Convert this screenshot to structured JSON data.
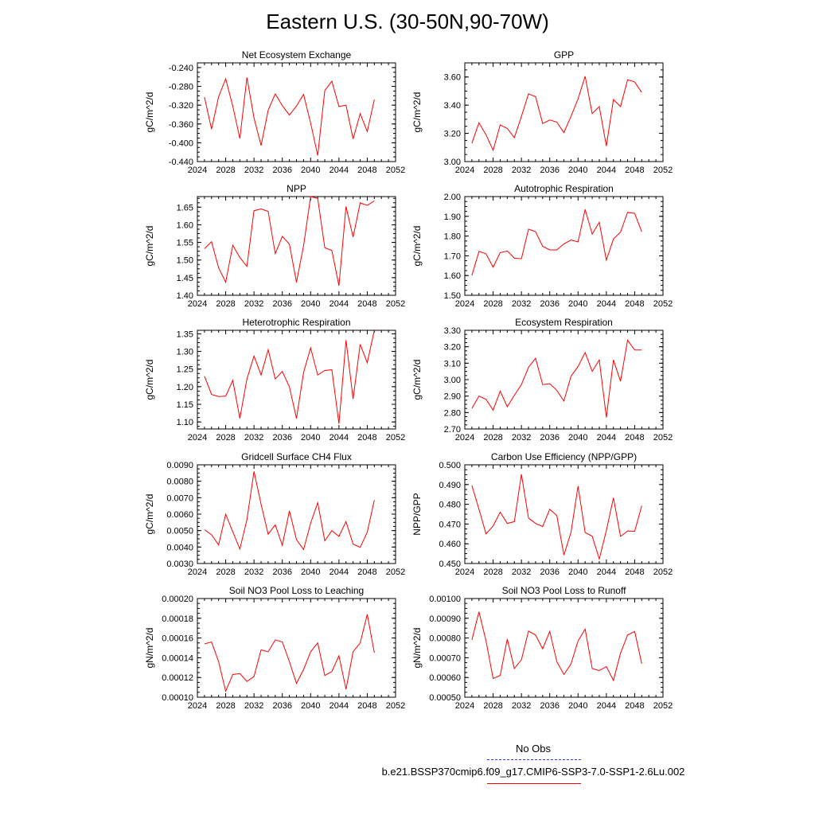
{
  "page": {
    "title": "Eastern U.S. (30-50N,90-70W)",
    "legend": {
      "obs_label": "No Obs",
      "model_label": "b.e21.BSSP370cmip6.f09_g17.CMIP6-SSP3-7.0-SSP1-2.6Lu.002",
      "obs_color": "#3333ff",
      "model_color": "#ff0000"
    }
  },
  "chart_data": [
    {
      "type": "line",
      "title": "Net Ecosystem Exchange",
      "ylabel": "gC/m^2/d",
      "xlim": [
        2024,
        2052
      ],
      "xticks": [
        "2024",
        "2028",
        "2032",
        "2036",
        "2040",
        "2044",
        "2048",
        "2052"
      ],
      "ylim": [
        -0.44,
        -0.23
      ],
      "yticks": [
        "-0.240",
        "-0.280",
        "-0.320",
        "-0.360",
        "-0.400",
        "-0.440"
      ],
      "ytick_values": [
        -0.24,
        -0.28,
        -0.32,
        -0.36,
        -0.4,
        -0.44
      ],
      "x": [
        2025,
        2026,
        2027,
        2028,
        2029,
        2030,
        2031,
        2032,
        2033,
        2034,
        2035,
        2036,
        2037,
        2038,
        2039,
        2040,
        2041,
        2042,
        2043,
        2044,
        2045,
        2046,
        2047,
        2048,
        2049
      ],
      "series": [
        {
          "values": [
            -0.303,
            -0.371,
            -0.302,
            -0.264,
            -0.322,
            -0.391,
            -0.261,
            -0.347,
            -0.406,
            -0.331,
            -0.296,
            -0.321,
            -0.341,
            -0.322,
            -0.297,
            -0.358,
            -0.427,
            -0.289,
            -0.269,
            -0.323,
            -0.32,
            -0.392,
            -0.338,
            -0.376,
            -0.308
          ]
        }
      ]
    },
    {
      "type": "line",
      "title": "GPP",
      "ylabel": "gC/m^2/d",
      "xlim": [
        2024,
        2052
      ],
      "xticks": [
        "2024",
        "2028",
        "2032",
        "2036",
        "2040",
        "2044",
        "2048",
        "2052"
      ],
      "ylim": [
        3.0,
        3.7
      ],
      "yticks": [
        "3.00",
        "3.20",
        "3.40",
        "3.60"
      ],
      "ytick_values": [
        3.0,
        3.2,
        3.4,
        3.6
      ],
      "x": [
        2025,
        2026,
        2027,
        2028,
        2029,
        2030,
        2031,
        2032,
        2033,
        2034,
        2035,
        2036,
        2037,
        2038,
        2039,
        2040,
        2041,
        2042,
        2043,
        2044,
        2045,
        2046,
        2047,
        2048,
        2049
      ],
      "series": [
        {
          "values": [
            3.13,
            3.275,
            3.19,
            3.08,
            3.26,
            3.235,
            3.17,
            3.32,
            3.48,
            3.46,
            3.27,
            3.295,
            3.28,
            3.205,
            3.32,
            3.445,
            3.605,
            3.34,
            3.39,
            3.11,
            3.44,
            3.39,
            3.58,
            3.565,
            3.49
          ]
        }
      ]
    },
    {
      "type": "line",
      "title": "NPP",
      "ylabel": "gC/m^2/d",
      "xlim": [
        2024,
        2052
      ],
      "xticks": [
        "2024",
        "2028",
        "2032",
        "2036",
        "2040",
        "2044",
        "2048",
        "2052"
      ],
      "ylim": [
        1.4,
        1.68
      ],
      "yticks": [
        "1.40",
        "1.45",
        "1.50",
        "1.55",
        "1.60",
        "1.65"
      ],
      "ytick_values": [
        1.4,
        1.45,
        1.5,
        1.55,
        1.6,
        1.65
      ],
      "x": [
        2025,
        2026,
        2027,
        2028,
        2029,
        2030,
        2031,
        2032,
        2033,
        2034,
        2035,
        2036,
        2037,
        2038,
        2039,
        2040,
        2041,
        2042,
        2043,
        2044,
        2045,
        2046,
        2047,
        2048,
        2049
      ],
      "series": [
        {
          "values": [
            1.532,
            1.552,
            1.478,
            1.437,
            1.542,
            1.507,
            1.482,
            1.64,
            1.645,
            1.638,
            1.518,
            1.567,
            1.545,
            1.437,
            1.54,
            1.68,
            1.675,
            1.535,
            1.527,
            1.427,
            1.652,
            1.565,
            1.662,
            1.655,
            1.668
          ]
        }
      ]
    },
    {
      "type": "line",
      "title": "Autotrophic Respiration",
      "ylabel": "gC/m^2/d",
      "xlim": [
        2024,
        2052
      ],
      "xticks": [
        "2024",
        "2028",
        "2032",
        "2036",
        "2040",
        "2044",
        "2048",
        "2052"
      ],
      "ylim": [
        1.5,
        2.0
      ],
      "yticks": [
        "1.50",
        "1.60",
        "1.70",
        "1.80",
        "1.90",
        "2.00"
      ],
      "ytick_values": [
        1.5,
        1.6,
        1.7,
        1.8,
        1.9,
        2.0
      ],
      "x": [
        2025,
        2026,
        2027,
        2028,
        2029,
        2030,
        2031,
        2032,
        2033,
        2034,
        2035,
        2036,
        2037,
        2038,
        2039,
        2040,
        2041,
        2042,
        2043,
        2044,
        2045,
        2046,
        2047,
        2048,
        2049
      ],
      "series": [
        {
          "values": [
            1.6,
            1.722,
            1.71,
            1.642,
            1.716,
            1.724,
            1.688,
            1.685,
            1.835,
            1.822,
            1.748,
            1.73,
            1.73,
            1.76,
            1.78,
            1.77,
            1.935,
            1.81,
            1.87,
            1.678,
            1.785,
            1.82,
            1.92,
            1.915,
            1.822
          ]
        }
      ]
    },
    {
      "type": "line",
      "title": "Heterotrophic Respiration",
      "ylabel": "gC/m^2/d",
      "xlim": [
        2024,
        2052
      ],
      "xticks": [
        "2024",
        "2028",
        "2032",
        "2036",
        "2040",
        "2044",
        "2048",
        "2052"
      ],
      "ylim": [
        1.08,
        1.36
      ],
      "yticks": [
        "1.10",
        "1.15",
        "1.20",
        "1.25",
        "1.30",
        "1.35"
      ],
      "ytick_values": [
        1.1,
        1.15,
        1.2,
        1.25,
        1.3,
        1.35
      ],
      "x": [
        2025,
        2026,
        2027,
        2028,
        2029,
        2030,
        2031,
        2032,
        2033,
        2034,
        2035,
        2036,
        2037,
        2038,
        2039,
        2040,
        2041,
        2042,
        2043,
        2044,
        2045,
        2046,
        2047,
        2048,
        2049
      ],
      "series": [
        {
          "values": [
            1.23,
            1.178,
            1.172,
            1.173,
            1.218,
            1.11,
            1.222,
            1.287,
            1.233,
            1.305,
            1.222,
            1.243,
            1.2,
            1.11,
            1.24,
            1.31,
            1.233,
            1.246,
            1.248,
            1.095,
            1.332,
            1.165,
            1.32,
            1.268,
            1.36
          ]
        }
      ]
    },
    {
      "type": "line",
      "title": "Ecosystem Respiration",
      "ylabel": "gC/m^2/d",
      "xlim": [
        2024,
        2052
      ],
      "xticks": [
        "2024",
        "2028",
        "2032",
        "2036",
        "2040",
        "2044",
        "2048",
        "2052"
      ],
      "ylim": [
        2.7,
        3.3
      ],
      "yticks": [
        "2.70",
        "2.80",
        "2.90",
        "3.00",
        "3.10",
        "3.20",
        "3.30"
      ],
      "ytick_values": [
        2.7,
        2.8,
        2.9,
        3.0,
        3.1,
        3.2,
        3.3
      ],
      "x": [
        2025,
        2026,
        2027,
        2028,
        2029,
        2030,
        2031,
        2032,
        2033,
        2034,
        2035,
        2036,
        2037,
        2038,
        2039,
        2040,
        2041,
        2042,
        2043,
        2044,
        2045,
        2046,
        2047,
        2048,
        2049
      ],
      "series": [
        {
          "values": [
            2.825,
            2.9,
            2.88,
            2.815,
            2.93,
            2.835,
            2.905,
            2.97,
            3.075,
            3.13,
            2.97,
            2.975,
            2.935,
            2.87,
            3.02,
            3.08,
            3.165,
            3.05,
            3.12,
            2.77,
            3.12,
            2.99,
            3.24,
            3.18,
            3.18
          ]
        }
      ]
    },
    {
      "type": "line",
      "title": "Gridcell Surface CH4 Flux",
      "ylabel": "gC/m^2/d",
      "xlim": [
        2024,
        2052
      ],
      "xticks": [
        "2024",
        "2028",
        "2032",
        "2036",
        "2040",
        "2044",
        "2048",
        "2052"
      ],
      "ylim": [
        0.003,
        0.009
      ],
      "yticks": [
        "0.0030",
        "0.0040",
        "0.0050",
        "0.0060",
        "0.0070",
        "0.0080",
        "0.0090"
      ],
      "ytick_values": [
        0.003,
        0.004,
        0.005,
        0.006,
        0.007,
        0.008,
        0.009
      ],
      "x": [
        2025,
        2026,
        2027,
        2028,
        2029,
        2030,
        2031,
        2032,
        2033,
        2034,
        2035,
        2036,
        2037,
        2038,
        2039,
        2040,
        2041,
        2042,
        2043,
        2044,
        2045,
        2046,
        2047,
        2048,
        2049
      ],
      "series": [
        {
          "values": [
            0.00505,
            0.00475,
            0.00413,
            0.006,
            0.00493,
            0.00388,
            0.00566,
            0.0086,
            0.0066,
            0.00478,
            0.00535,
            0.0041,
            0.0062,
            0.00445,
            0.00385,
            0.00545,
            0.0067,
            0.00438,
            0.005,
            0.00465,
            0.00555,
            0.00418,
            0.00398,
            0.0049,
            0.00685
          ]
        }
      ]
    },
    {
      "type": "line",
      "title": "Carbon Use Efficiency (NPP/GPP)",
      "ylabel": "NPP/GPP",
      "xlim": [
        2024,
        2052
      ],
      "xticks": [
        "2024",
        "2028",
        "2032",
        "2036",
        "2040",
        "2044",
        "2048",
        "2052"
      ],
      "ylim": [
        0.45,
        0.5
      ],
      "yticks": [
        "0.450",
        "0.460",
        "0.470",
        "0.480",
        "0.490",
        "0.500"
      ],
      "ytick_values": [
        0.45,
        0.46,
        0.47,
        0.48,
        0.49,
        0.5
      ],
      "x": [
        2025,
        2026,
        2027,
        2028,
        2029,
        2030,
        2031,
        2032,
        2033,
        2034,
        2035,
        2036,
        2037,
        2038,
        2039,
        2040,
        2041,
        2042,
        2043,
        2044,
        2045,
        2046,
        2047,
        2048,
        2049
      ],
      "series": [
        {
          "values": [
            0.4895,
            0.4775,
            0.465,
            0.469,
            0.476,
            0.4703,
            0.4712,
            0.4952,
            0.473,
            0.4703,
            0.4687,
            0.4775,
            0.4743,
            0.4543,
            0.4657,
            0.4892,
            0.4657,
            0.4638,
            0.4523,
            0.4667,
            0.4833,
            0.4637,
            0.4665,
            0.4663,
            0.4793
          ]
        }
      ]
    },
    {
      "type": "line",
      "title": "Soil NO3 Pool Loss to Leaching",
      "ylabel": "gN/m^2/d",
      "xlim": [
        2024,
        2052
      ],
      "xticks": [
        "2024",
        "2028",
        "2032",
        "2036",
        "2040",
        "2044",
        "2048",
        "2052"
      ],
      "ylim": [
        0.0001,
        0.0002
      ],
      "yticks": [
        "0.00010",
        "0.00012",
        "0.00014",
        "0.00016",
        "0.00018",
        "0.00020"
      ],
      "ytick_values": [
        0.0001,
        0.00012,
        0.00014,
        0.00016,
        0.00018,
        0.0002
      ],
      "x": [
        2025,
        2026,
        2027,
        2028,
        2029,
        2030,
        2031,
        2032,
        2033,
        2034,
        2035,
        2036,
        2037,
        2038,
        2039,
        2040,
        2041,
        2042,
        2043,
        2044,
        2045,
        2046,
        2047,
        2048,
        2049
      ],
      "series": [
        {
          "values": [
            0.000154,
            0.000156,
            0.000136,
            0.000106,
            0.000123,
            0.000124,
            0.000116,
            0.000121,
            0.000148,
            0.000146,
            0.000158,
            0.000156,
            0.000136,
            0.000114,
            0.000128,
            0.000146,
            0.000155,
            0.000122,
            0.000126,
            0.000142,
            0.000108,
            0.000146,
            0.000155,
            0.000184,
            0.000145
          ]
        }
      ]
    },
    {
      "type": "line",
      "title": "Soil NO3 Pool Loss to Runoff",
      "ylabel": "gN/m^2/d",
      "xlim": [
        2024,
        2052
      ],
      "xticks": [
        "2024",
        "2028",
        "2032",
        "2036",
        "2040",
        "2044",
        "2048",
        "2052"
      ],
      "ylim": [
        0.0005,
        0.001
      ],
      "yticks": [
        "0.00050",
        "0.00060",
        "0.00070",
        "0.00080",
        "0.00090",
        "0.00100"
      ],
      "ytick_values": [
        0.0005,
        0.0006,
        0.0007,
        0.0008,
        0.0009,
        0.001
      ],
      "x": [
        2025,
        2026,
        2027,
        2028,
        2029,
        2030,
        2031,
        2032,
        2033,
        2034,
        2035,
        2036,
        2037,
        2038,
        2039,
        2040,
        2041,
        2042,
        2043,
        2044,
        2045,
        2046,
        2047,
        2048,
        2049
      ],
      "series": [
        {
          "values": [
            0.00079,
            0.000933,
            0.000785,
            0.000595,
            0.00061,
            0.000795,
            0.000645,
            0.00069,
            0.000835,
            0.000815,
            0.000745,
            0.000833,
            0.00068,
            0.000615,
            0.000668,
            0.000785,
            0.000845,
            0.000645,
            0.000635,
            0.000655,
            0.000585,
            0.000723,
            0.000815,
            0.000833,
            0.00067
          ]
        }
      ]
    }
  ]
}
